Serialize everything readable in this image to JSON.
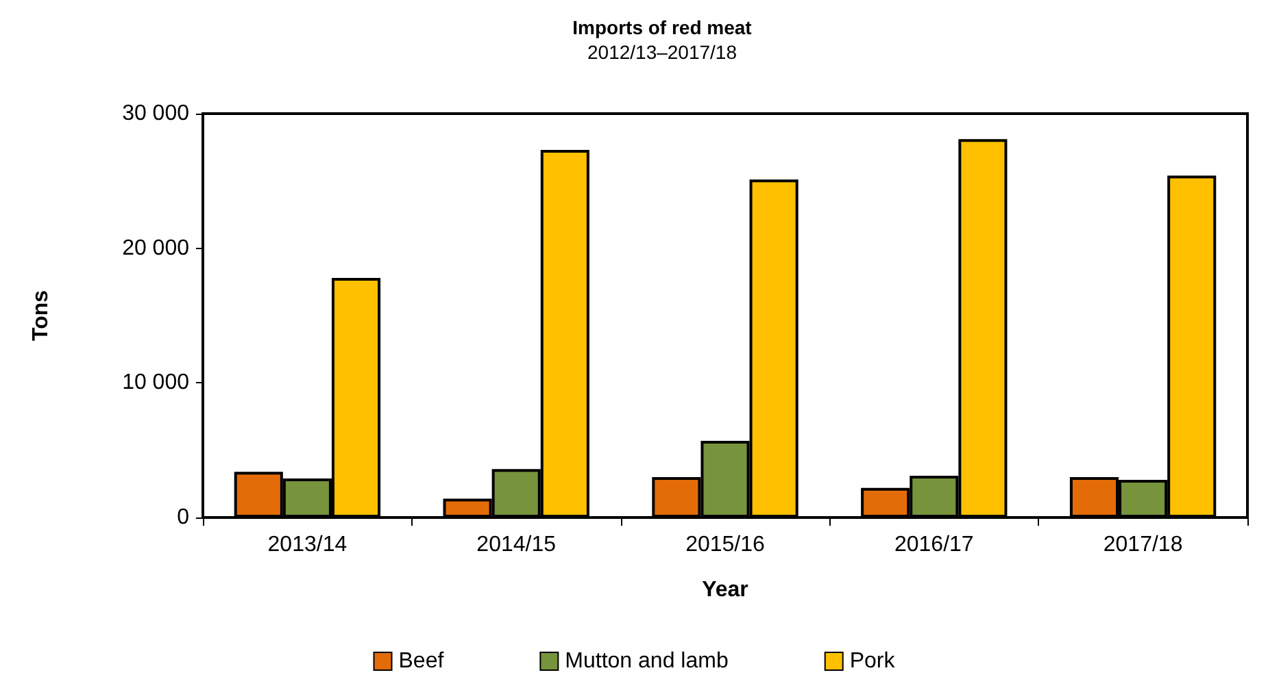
{
  "chart_data": {
    "type": "bar",
    "title": "Imports of red meat",
    "subtitle": "2012/13–2017/18",
    "xlabel": "Year",
    "ylabel": "Tons",
    "categories": [
      "2013/14",
      "2014/15",
      "2015/16",
      "2016/17",
      "2017/18"
    ],
    "series": [
      {
        "name": "Beef",
        "color": "#e36c09",
        "values": [
          3400,
          1400,
          3000,
          2200,
          3000
        ]
      },
      {
        "name": "Mutton and lamb",
        "color": "#77933c",
        "values": [
          2900,
          3600,
          5700,
          3100,
          2800
        ]
      },
      {
        "name": "Pork",
        "color": "#ffc000",
        "values": [
          17800,
          27300,
          25100,
          28100,
          25400
        ]
      }
    ],
    "ylim": [
      0,
      30000
    ],
    "yticks": [
      {
        "value": 0,
        "label": "0"
      },
      {
        "value": 10000,
        "label": "10 000"
      },
      {
        "value": 20000,
        "label": "20 000"
      },
      {
        "value": 30000,
        "label": "30 000"
      }
    ],
    "grid": false,
    "legend": "bottom"
  }
}
